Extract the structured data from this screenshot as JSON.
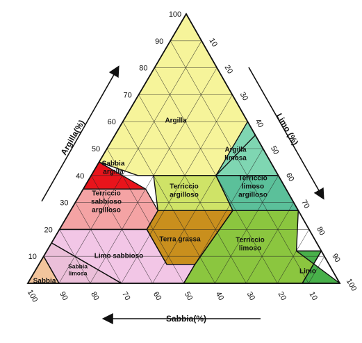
{
  "colors": {
    "argilla": "#f6f49a",
    "sabbia_argilla": "#e8141b",
    "terriccio_sabbioso_argilloso": "#f4a3a4",
    "limo_sabbioso": "#f2c6e6",
    "sabbia": "#f2c49c",
    "sabbia_limosa": "#ebbfd9",
    "terriccio_argilloso": "#cfe367",
    "terra_grassa": "#c98f1d",
    "argilla_limosa": "#7fd6b2",
    "terriccio_limoso_argilloso": "#5bc09a",
    "terriccio_limoso": "#8bc63f",
    "limo": "#48b04a",
    "grid": "#222222"
  },
  "regions": [
    {
      "key": "argilla",
      "lines": [
        "Argilla"
      ]
    },
    {
      "key": "sabbia_argilla",
      "lines": [
        "Sabbia",
        "argilla"
      ]
    },
    {
      "key": "terriccio_sabbioso_argilloso",
      "lines": [
        "Terriccio",
        "sabbioso",
        "argilloso"
      ]
    },
    {
      "key": "limo_sabbioso",
      "lines": [
        "Limo sabbioso"
      ]
    },
    {
      "key": "sabbia",
      "lines": [
        "Sabbia"
      ]
    },
    {
      "key": "sabbia_limosa",
      "lines": [
        "Sabbia",
        "limosa"
      ]
    },
    {
      "key": "terriccio_argilloso",
      "lines": [
        "Terriccio",
        "argilloso"
      ]
    },
    {
      "key": "terra_grassa",
      "lines": [
        "Terra grassa"
      ]
    },
    {
      "key": "argilla_limosa",
      "lines": [
        "Argilla",
        "limosa"
      ]
    },
    {
      "key": "terriccio_limoso_argilloso",
      "lines": [
        "Terriccio",
        "limoso",
        "argilloso"
      ]
    },
    {
      "key": "terriccio_limoso",
      "lines": [
        "Terriccio",
        "limoso"
      ]
    },
    {
      "key": "limo",
      "lines": [
        "Limo"
      ]
    }
  ],
  "axes": {
    "argilla": {
      "title": "Argilla(%)",
      "ticks": [
        "100",
        "90",
        "80",
        "70",
        "60",
        "50",
        "40",
        "30",
        "20",
        "10"
      ]
    },
    "limo": {
      "title": "Limo (%)",
      "ticks": [
        "10",
        "20",
        "30",
        "40",
        "50",
        "60",
        "70",
        "80",
        "90",
        "100"
      ]
    },
    "sabbia": {
      "title": "Sabbia(%)",
      "ticks": [
        "100",
        "90",
        "80",
        "70",
        "60",
        "50",
        "40",
        "30",
        "20",
        "10"
      ]
    }
  }
}
